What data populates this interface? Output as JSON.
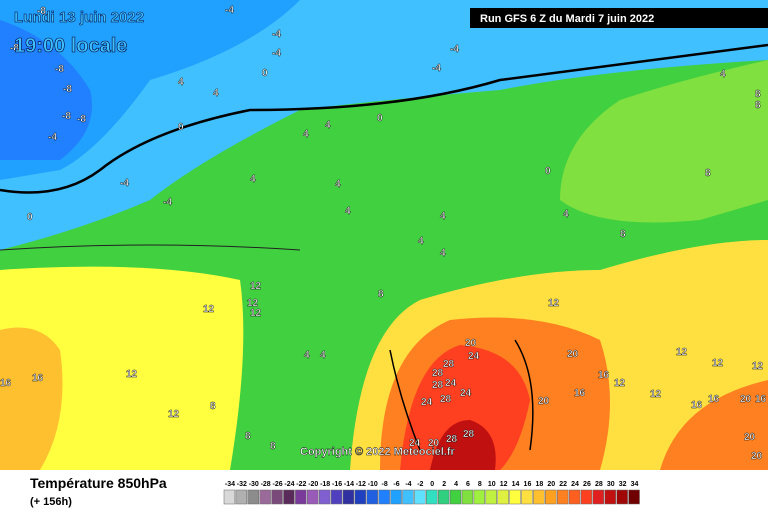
{
  "header": {
    "date": "Lundi 13 juin 2022",
    "time": "19:00 locale",
    "run": "Run GFS 6 Z du Mardi 7 juin 2022"
  },
  "copyright": "Copyright © 2022 Meteociel.fr",
  "footer": {
    "title": "Température 850hPa",
    "lead": "(+ 156h)"
  },
  "legend": {
    "ticks": [
      -34,
      -32,
      -30,
      -28,
      -26,
      -24,
      -22,
      -20,
      -18,
      -16,
      -14,
      -12,
      -10,
      -8,
      -6,
      -4,
      -2,
      0,
      2,
      4,
      6,
      8,
      10,
      12,
      14,
      16,
      18,
      20,
      22,
      24,
      26,
      28,
      30,
      32,
      34
    ],
    "colors": [
      "#d8d8d8",
      "#b0b0b0",
      "#8c8c8c",
      "#9a6a9a",
      "#7a4a7a",
      "#5a2a5a",
      "#7a3a9a",
      "#9a5ab8",
      "#8060d0",
      "#5040c0",
      "#3030a0",
      "#2040c0",
      "#2060e0",
      "#2080ff",
      "#20a0ff",
      "#40c0ff",
      "#60e0ff",
      "#30e0c0",
      "#30d080",
      "#40d040",
      "#80e040",
      "#a0f040",
      "#c0f040",
      "#e0f040",
      "#ffff40",
      "#ffe040",
      "#ffc030",
      "#ffa020",
      "#ff8020",
      "#ff6020",
      "#ff4020",
      "#e02020",
      "#c01010",
      "#a00808",
      "#700000"
    ]
  },
  "contour_labels": [
    -8,
    -8,
    -8,
    -8,
    -8,
    -8,
    -4,
    -4,
    -4,
    0,
    -4,
    -4,
    -4,
    0,
    4,
    4,
    0,
    0,
    -4,
    -4,
    4,
    4,
    4,
    4,
    4,
    0,
    4,
    8,
    8,
    8,
    8,
    4,
    4,
    4,
    4,
    12,
    12,
    12,
    12,
    8,
    12,
    20,
    24,
    28,
    28,
    28,
    24,
    24,
    28,
    24,
    20,
    28,
    24,
    20,
    28,
    16,
    16,
    12,
    12,
    8,
    4,
    4,
    8,
    8,
    20,
    16,
    16,
    12,
    12,
    12,
    12,
    12,
    16,
    16,
    20,
    16,
    20,
    20
  ]
}
